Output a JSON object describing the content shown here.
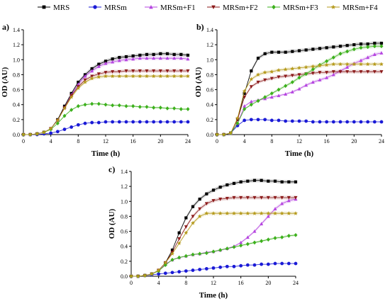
{
  "figure": {
    "legend": [
      {
        "name": "MRS",
        "color": "#000000",
        "marker": "square"
      },
      {
        "name": "MRSm",
        "color": "#1a1ad6",
        "marker": "circle"
      },
      {
        "name": "MRSm+F1",
        "color": "#b545e0",
        "marker": "triangle-up"
      },
      {
        "name": "MRSm+F2",
        "color": "#8b1a1a",
        "marker": "triangle-down"
      },
      {
        "name": "MRSm+F3",
        "color": "#3cb01c",
        "marker": "diamond"
      },
      {
        "name": "MRSm+F4",
        "color": "#b59a1c",
        "marker": "star"
      }
    ]
  },
  "chart_data": [
    {
      "type": "line",
      "panel_label": "a)",
      "xlabel": "Time (h)",
      "ylabel": "OD (AU)",
      "xlim": [
        0,
        24
      ],
      "ylim": [
        0,
        1.4
      ],
      "xticks": [
        0,
        4,
        8,
        12,
        16,
        20,
        24
      ],
      "yticks": [
        0.0,
        0.2,
        0.4,
        0.6,
        0.8,
        1.0,
        1.2,
        1.4
      ],
      "x": [
        0,
        1,
        2,
        3,
        4,
        5,
        6,
        7,
        8,
        9,
        10,
        11,
        12,
        13,
        14,
        15,
        16,
        17,
        18,
        19,
        20,
        21,
        22,
        23,
        24
      ],
      "series": [
        {
          "name": "MRS",
          "values": [
            0.0,
            0.0,
            0.01,
            0.03,
            0.08,
            0.2,
            0.38,
            0.55,
            0.7,
            0.8,
            0.88,
            0.94,
            0.98,
            1.01,
            1.03,
            1.04,
            1.05,
            1.06,
            1.07,
            1.07,
            1.08,
            1.08,
            1.07,
            1.07,
            1.06
          ]
        },
        {
          "name": "MRSm",
          "values": [
            0.0,
            0.0,
            0.0,
            0.01,
            0.02,
            0.04,
            0.07,
            0.1,
            0.13,
            0.15,
            0.16,
            0.16,
            0.17,
            0.17,
            0.17,
            0.17,
            0.17,
            0.17,
            0.17,
            0.17,
            0.17,
            0.17,
            0.17,
            0.17,
            0.17
          ]
        },
        {
          "name": "MRSm+F1",
          "values": [
            0.0,
            0.0,
            0.01,
            0.03,
            0.08,
            0.19,
            0.36,
            0.53,
            0.67,
            0.78,
            0.85,
            0.91,
            0.95,
            0.97,
            0.99,
            1.0,
            1.01,
            1.02,
            1.02,
            1.02,
            1.02,
            1.02,
            1.02,
            1.02,
            1.01
          ]
        },
        {
          "name": "MRSm+F2",
          "values": [
            0.0,
            0.0,
            0.01,
            0.03,
            0.08,
            0.19,
            0.36,
            0.52,
            0.64,
            0.73,
            0.78,
            0.81,
            0.83,
            0.84,
            0.84,
            0.85,
            0.85,
            0.85,
            0.85,
            0.85,
            0.85,
            0.85,
            0.85,
            0.85,
            0.85
          ]
        },
        {
          "name": "MRSm+F3",
          "values": [
            0.0,
            0.0,
            0.01,
            0.03,
            0.07,
            0.15,
            0.25,
            0.33,
            0.38,
            0.4,
            0.41,
            0.41,
            0.4,
            0.39,
            0.39,
            0.38,
            0.38,
            0.37,
            0.37,
            0.36,
            0.36,
            0.35,
            0.35,
            0.34,
            0.34
          ]
        },
        {
          "name": "MRSm+F4",
          "values": [
            0.0,
            0.0,
            0.01,
            0.03,
            0.08,
            0.19,
            0.35,
            0.5,
            0.62,
            0.7,
            0.75,
            0.77,
            0.78,
            0.78,
            0.78,
            0.78,
            0.78,
            0.78,
            0.78,
            0.78,
            0.78,
            0.78,
            0.78,
            0.78,
            0.78
          ]
        }
      ]
    },
    {
      "type": "line",
      "panel_label": "b)",
      "xlabel": "Time (h)",
      "ylabel": "OD (AU)",
      "xlim": [
        0,
        24
      ],
      "ylim": [
        0,
        1.4
      ],
      "xticks": [
        0,
        4,
        8,
        12,
        16,
        20,
        24
      ],
      "yticks": [
        0.0,
        0.2,
        0.4,
        0.6,
        0.8,
        1.0,
        1.2,
        1.4
      ],
      "x": [
        0,
        1,
        2,
        3,
        4,
        5,
        6,
        7,
        8,
        9,
        10,
        11,
        12,
        13,
        14,
        15,
        16,
        17,
        18,
        19,
        20,
        21,
        22,
        23,
        24
      ],
      "series": [
        {
          "name": "MRS",
          "values": [
            0.0,
            0.0,
            0.02,
            0.2,
            0.55,
            0.85,
            1.02,
            1.08,
            1.1,
            1.1,
            1.1,
            1.11,
            1.12,
            1.13,
            1.14,
            1.15,
            1.16,
            1.17,
            1.18,
            1.19,
            1.2,
            1.21,
            1.21,
            1.22,
            1.22
          ]
        },
        {
          "name": "MRSm",
          "values": [
            0.0,
            0.0,
            0.02,
            0.12,
            0.19,
            0.2,
            0.2,
            0.2,
            0.19,
            0.19,
            0.18,
            0.18,
            0.18,
            0.18,
            0.17,
            0.17,
            0.17,
            0.17,
            0.17,
            0.17,
            0.17,
            0.17,
            0.17,
            0.17,
            0.17
          ]
        },
        {
          "name": "MRSm+F1",
          "values": [
            0.0,
            0.0,
            0.02,
            0.15,
            0.38,
            0.44,
            0.46,
            0.48,
            0.5,
            0.52,
            0.54,
            0.57,
            0.61,
            0.66,
            0.7,
            0.73,
            0.76,
            0.8,
            0.85,
            0.9,
            0.95,
            0.99,
            1.03,
            1.07,
            1.09
          ]
        },
        {
          "name": "MRSm+F2",
          "values": [
            0.0,
            0.0,
            0.02,
            0.2,
            0.5,
            0.64,
            0.7,
            0.73,
            0.75,
            0.77,
            0.78,
            0.79,
            0.8,
            0.81,
            0.82,
            0.83,
            0.83,
            0.84,
            0.84,
            0.84,
            0.84,
            0.84,
            0.84,
            0.84,
            0.84
          ]
        },
        {
          "name": "MRSm+F3",
          "values": [
            0.0,
            0.0,
            0.02,
            0.15,
            0.34,
            0.4,
            0.45,
            0.5,
            0.55,
            0.6,
            0.65,
            0.7,
            0.76,
            0.81,
            0.87,
            0.93,
            0.98,
            1.03,
            1.08,
            1.11,
            1.14,
            1.16,
            1.17,
            1.18,
            1.18
          ]
        },
        {
          "name": "MRSm+F4",
          "values": [
            0.0,
            0.0,
            0.02,
            0.22,
            0.58,
            0.74,
            0.8,
            0.83,
            0.84,
            0.86,
            0.87,
            0.88,
            0.89,
            0.9,
            0.91,
            0.92,
            0.93,
            0.94,
            0.94,
            0.94,
            0.94,
            0.94,
            0.94,
            0.94,
            0.94
          ]
        }
      ]
    },
    {
      "type": "line",
      "panel_label": "c)",
      "xlabel": "Time (h)",
      "ylabel": "OD (AU)",
      "xlim": [
        0,
        24
      ],
      "ylim": [
        0,
        1.4
      ],
      "xticks": [
        0,
        4,
        8,
        12,
        16,
        20,
        24
      ],
      "yticks": [
        0.0,
        0.2,
        0.4,
        0.6,
        0.8,
        1.0,
        1.2,
        1.4
      ],
      "x": [
        0,
        1,
        2,
        3,
        4,
        5,
        6,
        7,
        8,
        9,
        10,
        11,
        12,
        13,
        14,
        15,
        16,
        17,
        18,
        19,
        20,
        21,
        22,
        23,
        24
      ],
      "series": [
        {
          "name": "MRS",
          "values": [
            0.0,
            0.0,
            0.01,
            0.03,
            0.08,
            0.18,
            0.35,
            0.58,
            0.78,
            0.93,
            1.03,
            1.1,
            1.15,
            1.19,
            1.22,
            1.24,
            1.26,
            1.27,
            1.28,
            1.28,
            1.27,
            1.27,
            1.26,
            1.26,
            1.26
          ]
        },
        {
          "name": "MRSm",
          "values": [
            0.0,
            0.0,
            0.01,
            0.02,
            0.03,
            0.04,
            0.05,
            0.06,
            0.07,
            0.08,
            0.09,
            0.1,
            0.11,
            0.12,
            0.13,
            0.13,
            0.14,
            0.15,
            0.15,
            0.16,
            0.16,
            0.17,
            0.17,
            0.17,
            0.17
          ]
        },
        {
          "name": "MRSm+F1",
          "values": [
            0.0,
            0.0,
            0.01,
            0.03,
            0.08,
            0.16,
            0.22,
            0.25,
            0.27,
            0.29,
            0.3,
            0.32,
            0.33,
            0.35,
            0.37,
            0.4,
            0.45,
            0.52,
            0.6,
            0.7,
            0.8,
            0.9,
            0.97,
            1.01,
            1.03
          ]
        },
        {
          "name": "MRSm+F2",
          "values": [
            0.0,
            0.0,
            0.01,
            0.03,
            0.08,
            0.18,
            0.32,
            0.5,
            0.66,
            0.8,
            0.9,
            0.97,
            1.01,
            1.03,
            1.04,
            1.05,
            1.05,
            1.05,
            1.05,
            1.05,
            1.05,
            1.05,
            1.05,
            1.05,
            1.05
          ]
        },
        {
          "name": "MRSm+F3",
          "values": [
            0.0,
            0.0,
            0.01,
            0.03,
            0.07,
            0.15,
            0.22,
            0.25,
            0.27,
            0.29,
            0.3,
            0.31,
            0.33,
            0.35,
            0.37,
            0.39,
            0.41,
            0.43,
            0.45,
            0.47,
            0.49,
            0.51,
            0.52,
            0.54,
            0.55
          ]
        },
        {
          "name": "MRSm+F4",
          "values": [
            0.0,
            0.0,
            0.01,
            0.03,
            0.08,
            0.18,
            0.3,
            0.44,
            0.58,
            0.71,
            0.8,
            0.84,
            0.84,
            0.84,
            0.84,
            0.84,
            0.84,
            0.84,
            0.84,
            0.84,
            0.84,
            0.84,
            0.84,
            0.84,
            0.84
          ]
        }
      ]
    }
  ]
}
